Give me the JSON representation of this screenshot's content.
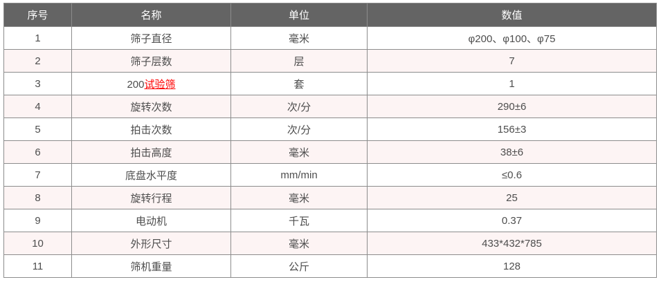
{
  "table": {
    "columns": [
      {
        "key": "index",
        "label": "序号"
      },
      {
        "key": "name",
        "label": "名称"
      },
      {
        "key": "unit",
        "label": "单位"
      },
      {
        "key": "value",
        "label": "数值"
      }
    ],
    "rows": [
      {
        "index": "1",
        "name": "筛子直径",
        "unit": "毫米",
        "value": "φ200、φ100、φ75"
      },
      {
        "index": "2",
        "name": "筛子层数",
        "unit": "层",
        "value": "7"
      },
      {
        "index": "3",
        "name_prefix": "200",
        "name_link": "试验筛",
        "unit": "套",
        "value": "1"
      },
      {
        "index": "4",
        "name": "旋转次数",
        "unit": "次/分",
        "value": "290±6"
      },
      {
        "index": "5",
        "name": "拍击次数",
        "unit": "次/分",
        "value": "156±3"
      },
      {
        "index": "6",
        "name": "拍击高度",
        "unit": "毫米",
        "value": "38±6"
      },
      {
        "index": "7",
        "name": "底盘水平度",
        "unit": "mm/min",
        "value": "≤0.6"
      },
      {
        "index": "8",
        "name": "旋转行程",
        "unit": "毫米",
        "value": "25"
      },
      {
        "index": "9",
        "name": "电动机",
        "unit": "千瓦",
        "value": "0.37"
      },
      {
        "index": "10",
        "name": "外形尺寸",
        "unit": "毫米",
        "value": "433*432*785"
      },
      {
        "index": "11",
        "name": "筛机重量",
        "unit": "公斤",
        "value": "128"
      }
    ],
    "colors": {
      "header_bg": "#646464",
      "header_text": "#ffffff",
      "row_alt_bg": "#fdf4f4",
      "border": "#8c8c8c",
      "text": "#4d4d4d",
      "link": "#ff0000"
    }
  }
}
